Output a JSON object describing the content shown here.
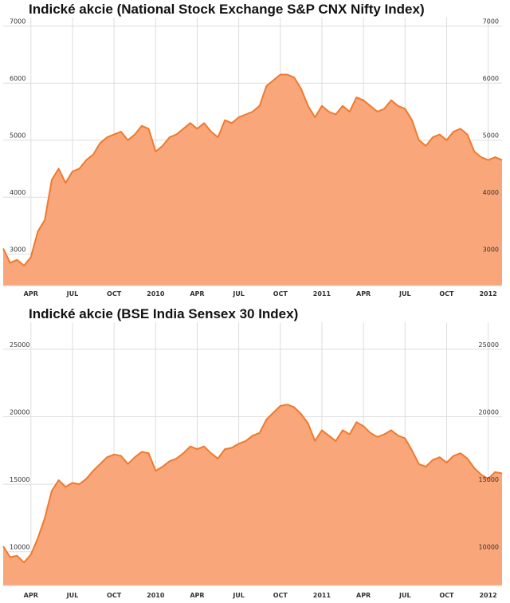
{
  "colors": {
    "fill": "#f9a77a",
    "line": "#ef7a2e",
    "grid": "#dddddd",
    "text": "#333333"
  },
  "chart_data": [
    {
      "type": "area",
      "title": "Indické akcie (National Stock Exchange S&P CNX Nifty Index)",
      "ylim": [
        2450,
        7150
      ],
      "yticks": [
        3000,
        4000,
        5000,
        6000,
        7000
      ],
      "ytick_labels": [
        "3000",
        "4000",
        "5000",
        "6000",
        "7000"
      ],
      "x_range": [
        0,
        36
      ],
      "xtick_pos": [
        2,
        5,
        8,
        11,
        14,
        17,
        20,
        23,
        26,
        29,
        32,
        35
      ],
      "xtick_labels": [
        "APR",
        "JUL",
        "OCT",
        "2010",
        "APR",
        "JUL",
        "OCT",
        "2011",
        "APR",
        "JUL",
        "OCT",
        "2012"
      ],
      "grid": true,
      "x": [
        0,
        0.5,
        1,
        1.5,
        2,
        2.5,
        3,
        3.5,
        4,
        4.5,
        5,
        5.5,
        6,
        6.5,
        7,
        7.5,
        8,
        8.5,
        9,
        9.5,
        10,
        10.5,
        11,
        11.5,
        12,
        12.5,
        13,
        13.5,
        14,
        14.5,
        15,
        15.5,
        16,
        16.5,
        17,
        17.5,
        18,
        18.5,
        19,
        19.5,
        20,
        20.5,
        21,
        21.5,
        22,
        22.5,
        23,
        23.5,
        24,
        24.5,
        25,
        25.5,
        26,
        26.5,
        27,
        27.5,
        28,
        28.5,
        29,
        29.5,
        30,
        30.5,
        31,
        31.5,
        32,
        32.5,
        33,
        33.5,
        34,
        34.5,
        35,
        35.5,
        36
      ],
      "values": [
        3100,
        2850,
        2900,
        2800,
        2950,
        3400,
        3600,
        4300,
        4500,
        4250,
        4450,
        4500,
        4650,
        4750,
        4950,
        5050,
        5100,
        5150,
        5000,
        5100,
        5250,
        5200,
        4800,
        4900,
        5050,
        5100,
        5200,
        5300,
        5200,
        5300,
        5150,
        5050,
        5350,
        5300,
        5400,
        5450,
        5500,
        5600,
        5950,
        6050,
        6150,
        6150,
        6100,
        5900,
        5600,
        5400,
        5600,
        5500,
        5450,
        5600,
        5500,
        5750,
        5700,
        5600,
        5500,
        5550,
        5700,
        5600,
        5550,
        5350,
        5000,
        4900,
        5050,
        5100,
        5000,
        5150,
        5200,
        5100,
        4800,
        4700,
        4650,
        4700,
        4650
      ]
    },
    {
      "type": "area",
      "title": "Indické akcie (BSE India Sensex 30 Index)",
      "ylim": [
        7500,
        27000
      ],
      "yticks": [
        10000,
        15000,
        20000,
        25000
      ],
      "ytick_labels": [
        "10000",
        "15000",
        "20000",
        "25000"
      ],
      "x_range": [
        0,
        36
      ],
      "xtick_pos": [
        2,
        5,
        8,
        11,
        14,
        17,
        20,
        23,
        26,
        29,
        32,
        35
      ],
      "xtick_labels": [
        "APR",
        "JUL",
        "OCT",
        "2010",
        "APR",
        "JUL",
        "OCT",
        "2011",
        "APR",
        "JUL",
        "OCT",
        "2012"
      ],
      "grid": true,
      "x": [
        0,
        0.5,
        1,
        1.5,
        2,
        2.5,
        3,
        3.5,
        4,
        4.5,
        5,
        5.5,
        6,
        6.5,
        7,
        7.5,
        8,
        8.5,
        9,
        9.5,
        10,
        10.5,
        11,
        11.5,
        12,
        12.5,
        13,
        13.5,
        14,
        14.5,
        15,
        15.5,
        16,
        16.5,
        17,
        17.5,
        18,
        18.5,
        19,
        19.5,
        20,
        20.5,
        21,
        21.5,
        22,
        22.5,
        23,
        23.5,
        24,
        24.5,
        25,
        25.5,
        26,
        26.5,
        27,
        27.5,
        28,
        28.5,
        29,
        29.5,
        30,
        30.5,
        31,
        31.5,
        32,
        32.5,
        33,
        33.5,
        34,
        34.5,
        35,
        35.5,
        36
      ],
      "values": [
        10400,
        9600,
        9700,
        9200,
        9800,
        11000,
        12500,
        14500,
        15300,
        14800,
        15100,
        15000,
        15400,
        16000,
        16500,
        17000,
        17200,
        17100,
        16500,
        17000,
        17400,
        17300,
        16000,
        16300,
        16700,
        16900,
        17300,
        17800,
        17600,
        17800,
        17300,
        16900,
        17600,
        17700,
        18000,
        18200,
        18600,
        18800,
        19800,
        20300,
        20800,
        20900,
        20700,
        20200,
        19500,
        18200,
        19000,
        18600,
        18200,
        19000,
        18700,
        19600,
        19300,
        18800,
        18500,
        18700,
        19000,
        18600,
        18400,
        17500,
        16500,
        16300,
        16800,
        17000,
        16600,
        17100,
        17300,
        16900,
        16200,
        15700,
        15400,
        15900,
        15800
      ]
    }
  ]
}
